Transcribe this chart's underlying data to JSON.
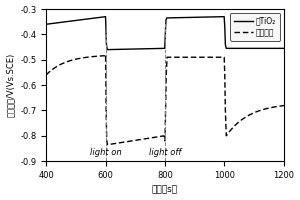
{
  "xlabel": "时间（s）",
  "ylabel": "开路电位/V(Vs.SCE)",
  "xlim": [
    400,
    1200
  ],
  "ylim": [
    -0.9,
    -0.3
  ],
  "xticks": [
    400,
    600,
    800,
    1000,
    1200
  ],
  "yticks": [
    -0.9,
    -0.8,
    -0.7,
    -0.6,
    -0.5,
    -0.4,
    -0.3
  ],
  "legend_solid": "纯TiO₂",
  "legend_dashed": "涂层材料",
  "annotation_light_on": "light on",
  "annotation_light_off": "light off",
  "background_color": "#ffffff"
}
